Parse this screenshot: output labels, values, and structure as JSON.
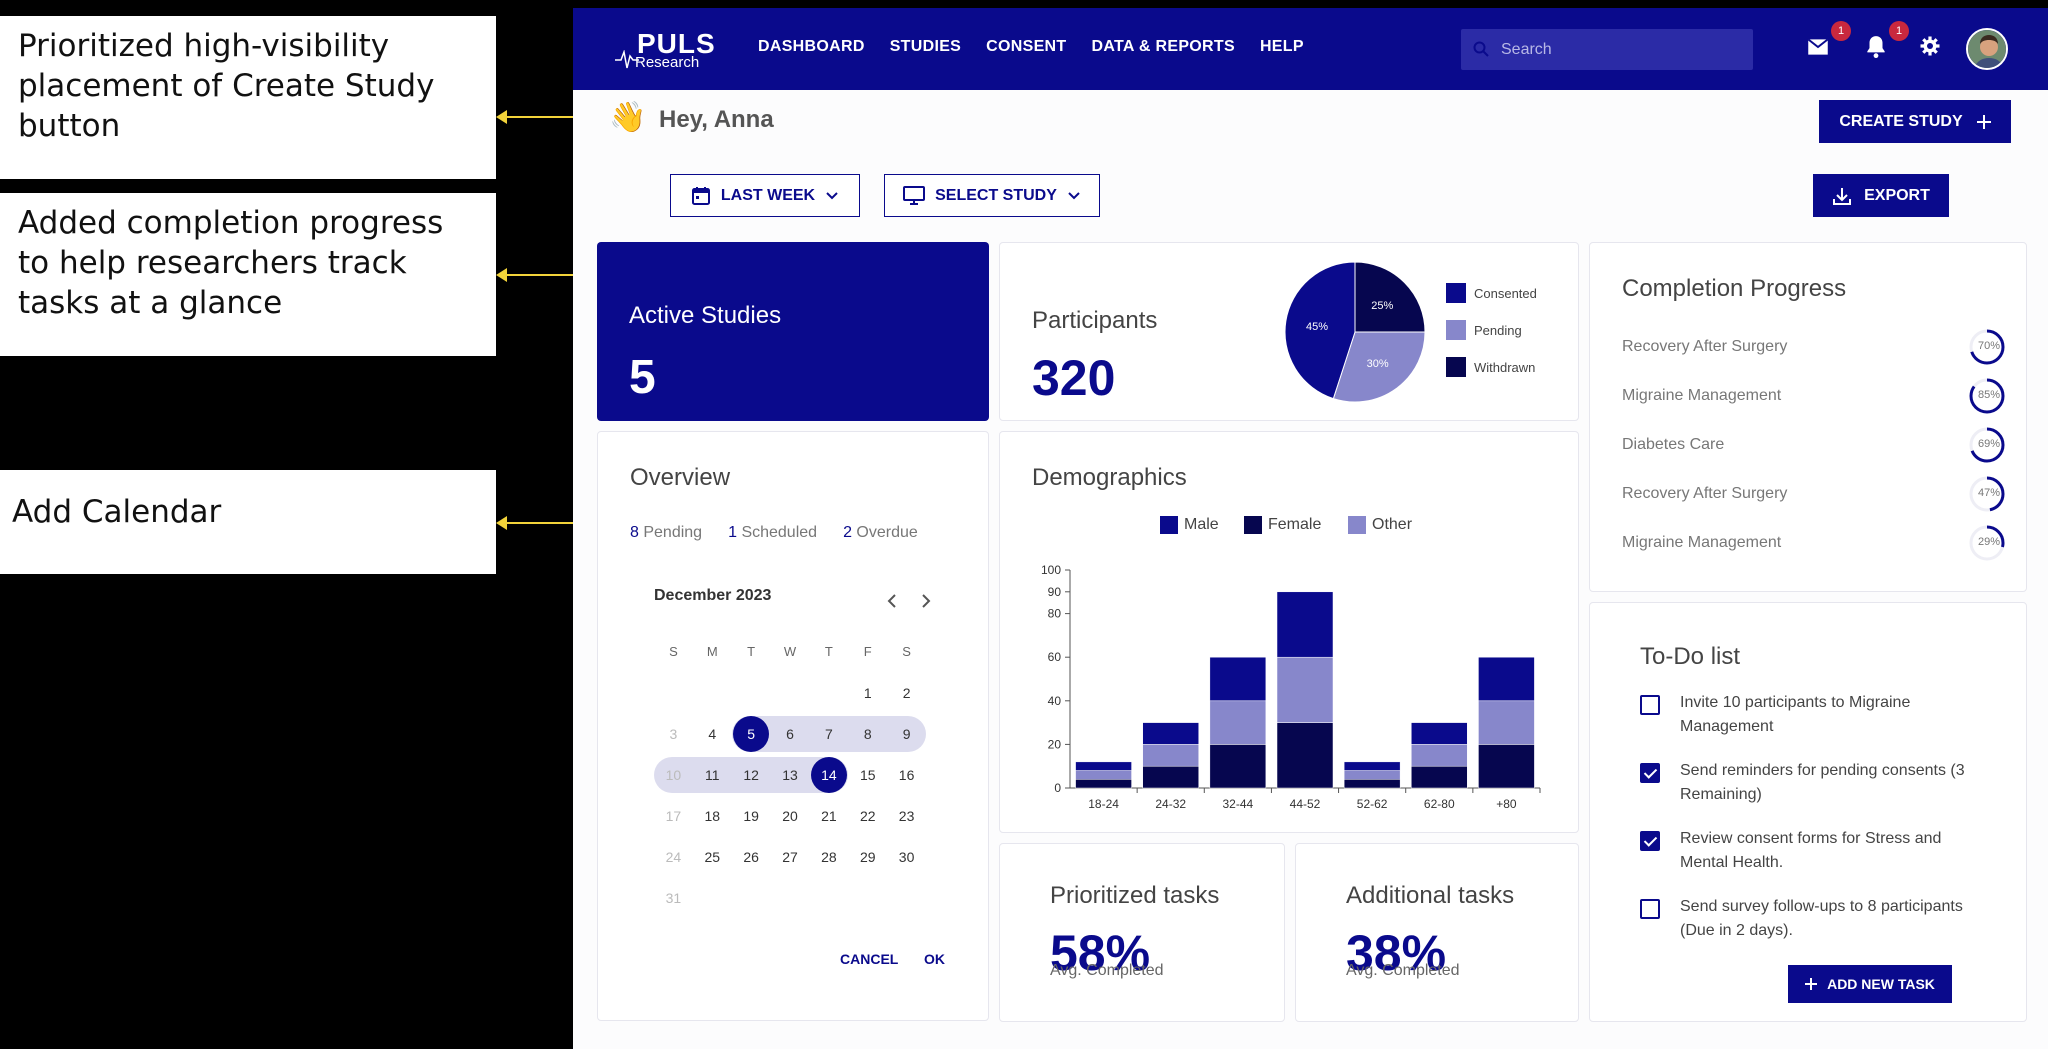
{
  "annotations": [
    {
      "text": "Prioritized high-visibility placement of Create Study button"
    },
    {
      "text": "Added completion progress to help researchers track tasks at a glance"
    },
    {
      "text": "Add Calendar"
    }
  ],
  "colors": {
    "brand": "#0a0a8c",
    "accent_light": "#8787cb",
    "dark": "#06064f",
    "badge": "#c9283e",
    "annotation_line": "#f2d33a"
  },
  "header": {
    "logo_word": "PULS",
    "logo_sub": "Research",
    "nav": [
      "DASHBOARD",
      "STUDIES",
      "CONSENT",
      "DATA & REPORTS",
      "HELP"
    ],
    "search_placeholder": "Search",
    "mail_badge": "1",
    "bell_badge": "1",
    "icons": [
      "search-icon",
      "mail-icon",
      "bell-icon",
      "gear-icon",
      "avatar"
    ]
  },
  "greeting": {
    "emoji": "👋",
    "text": "Hey, Anna"
  },
  "create_study_label": "CREATE STUDY",
  "filters": {
    "date_label": "LAST WEEK",
    "study_label": "SELECT STUDY"
  },
  "export_label": "EXPORT",
  "active_studies": {
    "label": "Active Studies",
    "value": "5"
  },
  "participants": {
    "label": "Participants",
    "value": "320",
    "legend": [
      "Consented",
      "Pending",
      "Withdrawn"
    ]
  },
  "completion": {
    "title": "Completion Progress",
    "items": [
      {
        "name": "Recovery After Surgery",
        "percent": "70%",
        "value": 70
      },
      {
        "name": "Migraine Management",
        "percent": "85%",
        "value": 85
      },
      {
        "name": "Diabetes Care",
        "percent": "69%",
        "value": 69
      },
      {
        "name": "Recovery After Surgery",
        "percent": "47%",
        "value": 47
      },
      {
        "name": "Migraine Management",
        "percent": "29%",
        "value": 29
      }
    ]
  },
  "overview": {
    "title": "Overview",
    "pending_count": "8",
    "pending_label": "Pending",
    "scheduled_count": "1",
    "scheduled_label": "Scheduled",
    "overdue_count": "2",
    "overdue_label": "Overdue"
  },
  "calendar": {
    "month": "December 2023",
    "weekdays": [
      "S",
      "M",
      "T",
      "W",
      "T",
      "F",
      "S"
    ],
    "days": [
      "1",
      "2",
      "3",
      "4",
      "5",
      "6",
      "7",
      "8",
      "9",
      "10",
      "11",
      "12",
      "13",
      "14",
      "15",
      "16",
      "17",
      "18",
      "19",
      "20",
      "21",
      "22",
      "23",
      "24",
      "25",
      "26",
      "27",
      "28",
      "29",
      "30",
      "31"
    ],
    "first_weekday": 5,
    "selected": [
      "5",
      "14"
    ],
    "cancel_label": "CANCEL",
    "ok_label": "OK"
  },
  "demographics": {
    "title": "Demographics"
  },
  "todo": {
    "title": "To-Do list",
    "items": [
      {
        "text": "Invite 10 participants to Migraine Management",
        "checked": false
      },
      {
        "text": "Send reminders for pending consents (3 Remaining)",
        "checked": true
      },
      {
        "text": "Review consent forms for Stress and Mental Health.",
        "checked": true
      },
      {
        "text": "Send survey follow-ups to 8 participants (Due in 2 days).",
        "checked": false
      }
    ],
    "add_label": "ADD NEW TASK"
  },
  "prioritized": {
    "title": "Prioritized tasks",
    "value": "58%",
    "sub": "Avg. Completed"
  },
  "additional": {
    "title": "Additional tasks",
    "value": "38%",
    "sub": "Avg. Completed"
  },
  "chart_data": [
    {
      "type": "pie",
      "labels": [
        "Consented",
        "Pending",
        "Withdrawn"
      ],
      "values": [
        45,
        30,
        25
      ],
      "data_labels": [
        "45%",
        "30%",
        "25%"
      ],
      "colors": [
        "#0a0a8c",
        "#8787cb",
        "#06064f"
      ],
      "legend_position": "right"
    },
    {
      "type": "bar",
      "stacked": true,
      "categories": [
        "18-24",
        "24-32",
        "32-44",
        "44-52",
        "52-62",
        "62-80",
        "+80"
      ],
      "series": [
        {
          "name": "Female",
          "values": [
            4,
            10,
            20,
            30,
            4,
            10,
            20
          ],
          "color": "#06064f"
        },
        {
          "name": "Other",
          "values": [
            4,
            10,
            20,
            30,
            4,
            10,
            20
          ],
          "color": "#8787cb"
        },
        {
          "name": "Male",
          "values": [
            4,
            10,
            20,
            30,
            4,
            10,
            20
          ],
          "color": "#0a0a8c"
        }
      ],
      "legend": [
        "Male",
        "Female",
        "Other"
      ],
      "legend_colors": [
        "#0a0a8c",
        "#06064f",
        "#8787cb"
      ],
      "ylim": [
        0,
        100
      ],
      "yticks": [
        0,
        20,
        40,
        60,
        80,
        90,
        100
      ],
      "legend_position": "top"
    }
  ]
}
